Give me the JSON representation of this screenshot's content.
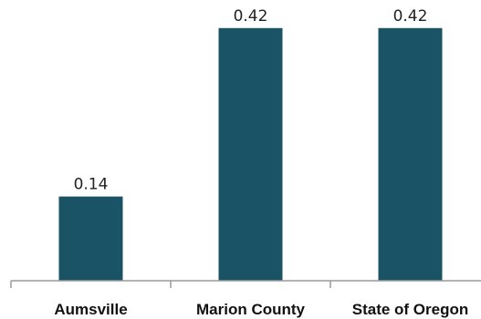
{
  "chart_data": {
    "type": "bar",
    "categories": [
      "Aumsville",
      "Marion County",
      "State of Oregon"
    ],
    "values": [
      0.14,
      0.42,
      0.42
    ],
    "data_labels": [
      "0.14",
      "0.42",
      "0.42"
    ],
    "title": "",
    "xlabel": "",
    "ylabel": "",
    "ylim": [
      0,
      0.5
    ],
    "grid": false,
    "legend": "none",
    "bar_color": "#1b5366"
  }
}
